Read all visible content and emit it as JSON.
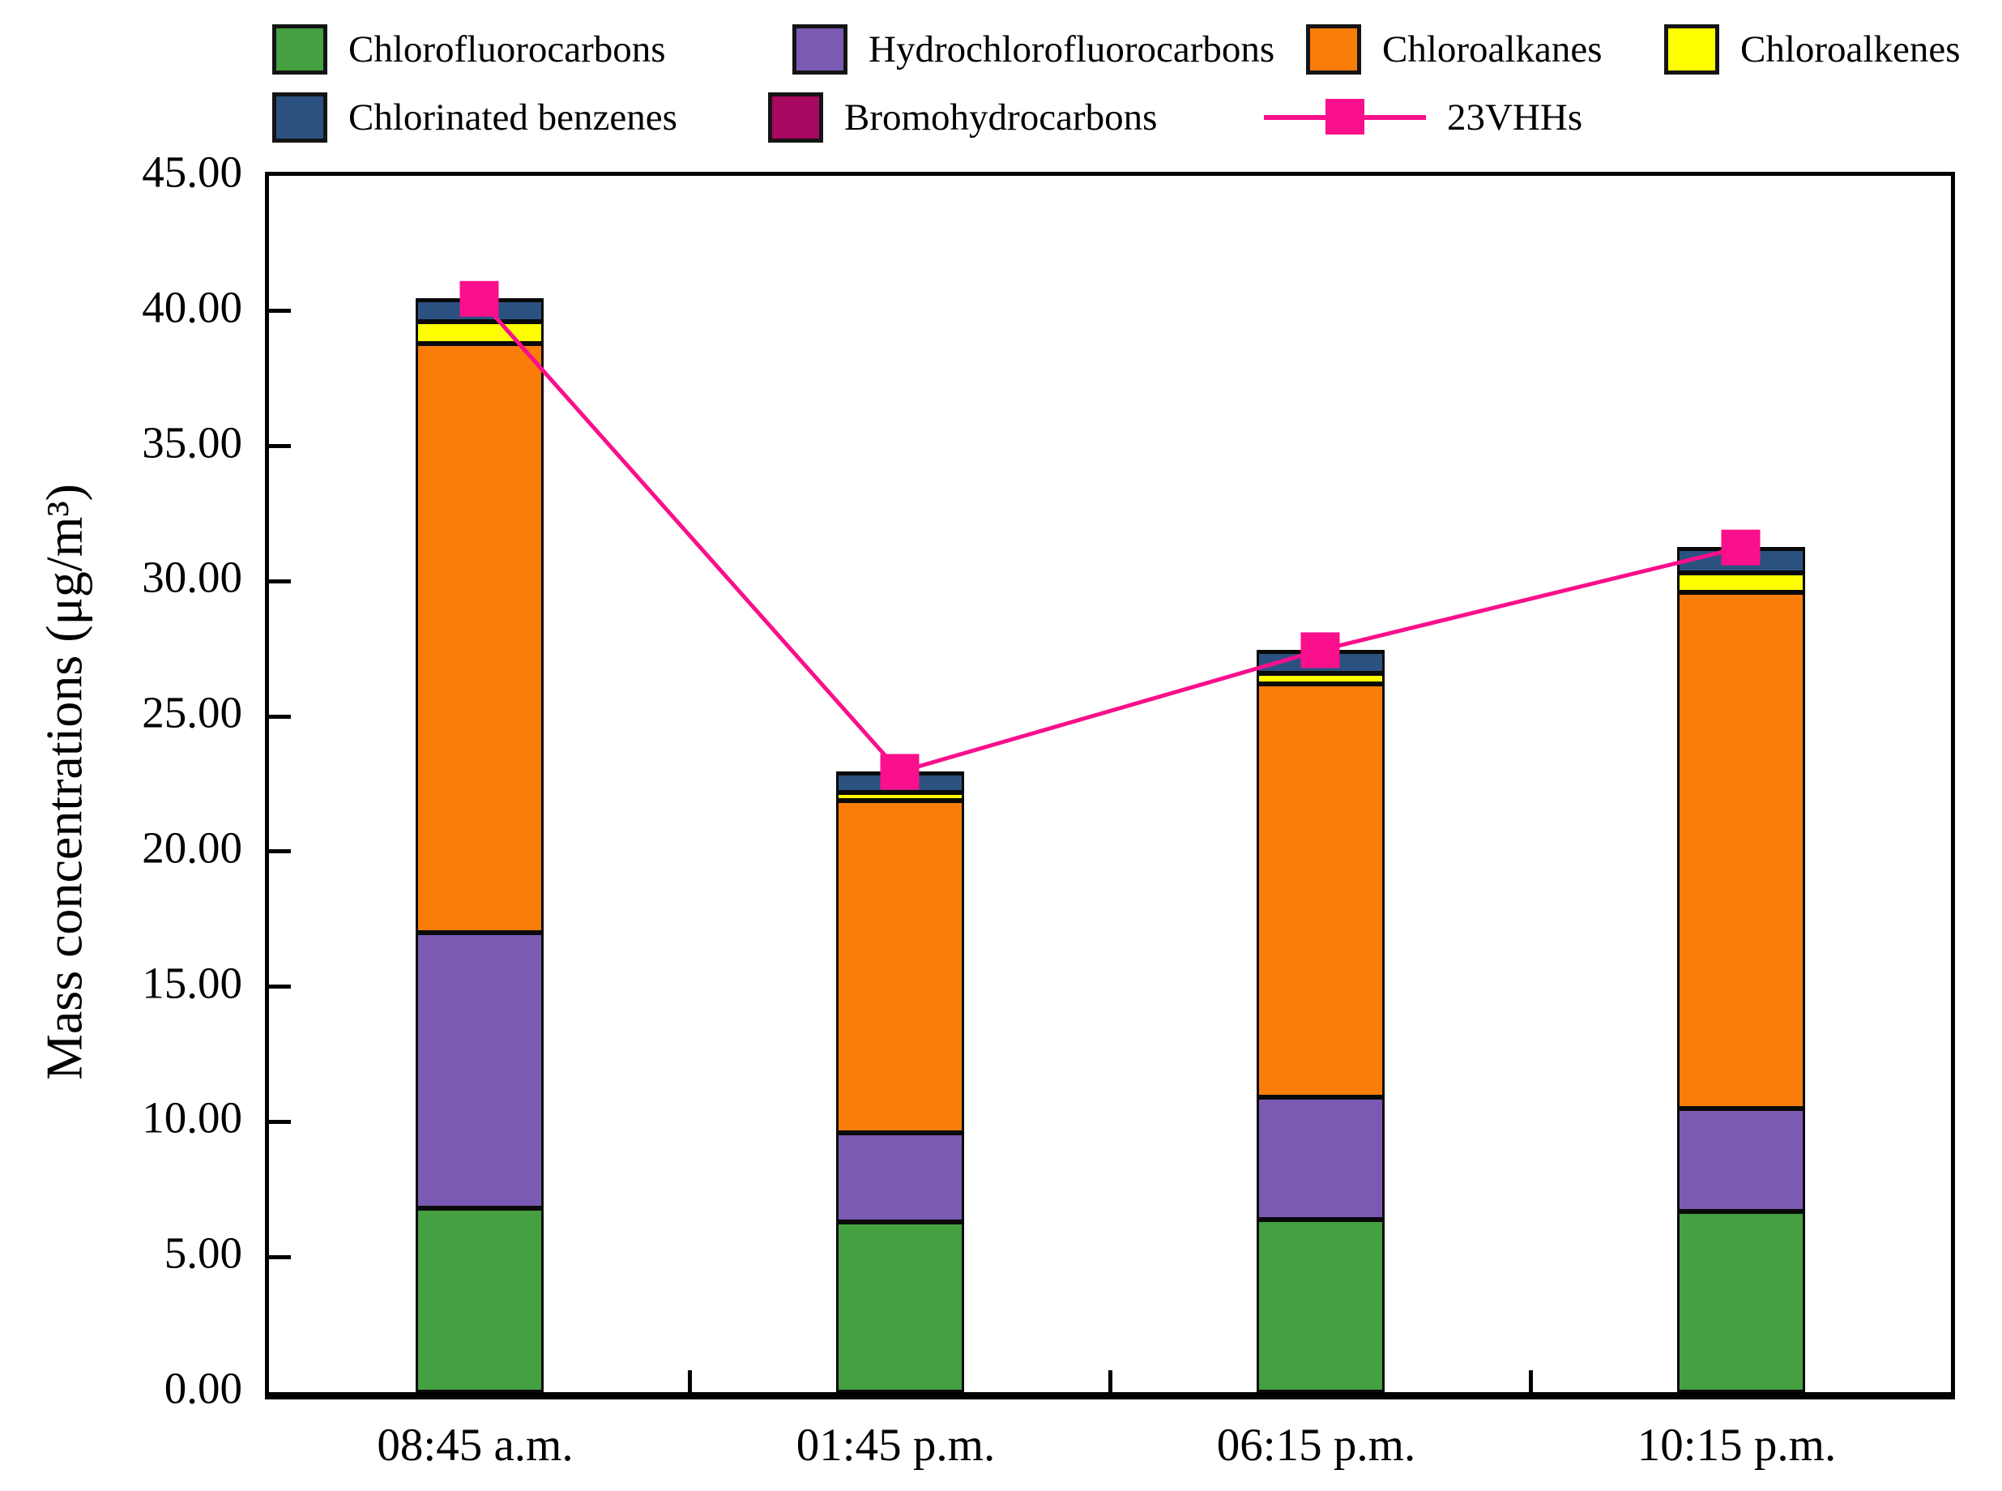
{
  "chart_data": {
    "type": "bar",
    "stacked": true,
    "title": "",
    "categories": [
      "08:45 a.m.",
      "01:45 p.m.",
      "06:15 p.m.",
      "10:15 p.m."
    ],
    "series": [
      {
        "name": "Chlorofluorocarbons",
        "color": "#44A041",
        "values": [
          6.8,
          6.3,
          6.4,
          6.7
        ]
      },
      {
        "name": "Hydrochlorofluorocarbons",
        "color": "#7B5AB4",
        "values": [
          10.2,
          3.3,
          4.5,
          3.8
        ]
      },
      {
        "name": "Chloroalkanes",
        "color": "#FA7D0A",
        "values": [
          21.8,
          12.3,
          15.3,
          19.1
        ]
      },
      {
        "name": "Chloroalkenes",
        "color": "#FEFE00",
        "values": [
          0.8,
          0.3,
          0.4,
          0.7
        ]
      },
      {
        "name": "Chlorinated benzenes",
        "color": "#2B5180",
        "values": [
          0.8,
          0.7,
          0.8,
          0.9
        ]
      },
      {
        "name": "Bromohydrocarbons",
        "color": "#A6095F",
        "values": [
          0.05,
          0.05,
          0.05,
          0.05
        ]
      }
    ],
    "line_series": {
      "name": "23VHHs",
      "color": "#FA0F8C",
      "marker": "square",
      "values": [
        40.45,
        22.95,
        27.45,
        31.25
      ]
    },
    "xlabel": "",
    "ylabel": "Mass concentrations (μg/m³)",
    "ylim": [
      0,
      45
    ],
    "ytick_step": 5,
    "ytick_labels": [
      "0.00",
      "5.00",
      "10.00",
      "15.00",
      "20.00",
      "25.00",
      "30.00",
      "35.00",
      "40.00",
      "45.00"
    ],
    "grid": false,
    "legend_position": "top"
  }
}
